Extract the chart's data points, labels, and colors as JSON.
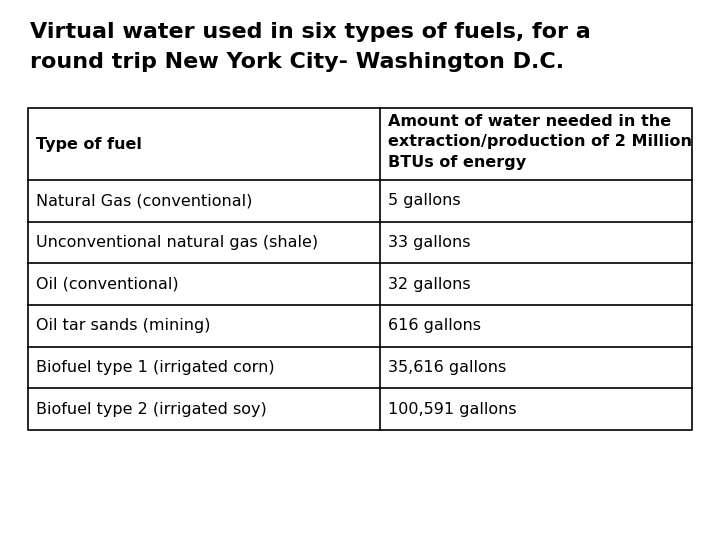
{
  "title_line1": "Virtual water used in six types of fuels, for a",
  "title_line2": "round trip New York City- Washington D.C.",
  "title_fontsize": 16,
  "title_fontweight": "bold",
  "col_header_1": "Type of fuel",
  "col_header_2": "Amount of water needed in the\nextraction/production of 2 Million\nBTUs of energy",
  "rows": [
    [
      "Natural Gas (conventional)",
      "5 gallons"
    ],
    [
      "Unconventional natural gas (shale)",
      "33 gallons"
    ],
    [
      "Oil (conventional)",
      "32 gallons"
    ],
    [
      "Oil tar sands (mining)",
      "616 gallons"
    ],
    [
      "Biofuel type 1 (irrigated corn)",
      "35,616 gallons"
    ],
    [
      "Biofuel type 2 (irrigated soy)",
      "100,591 gallons"
    ]
  ],
  "bg_color": "#ffffff",
  "text_color": "#000000",
  "border_color": "#000000",
  "body_fontsize": 11.5,
  "header_fontsize": 11.5
}
